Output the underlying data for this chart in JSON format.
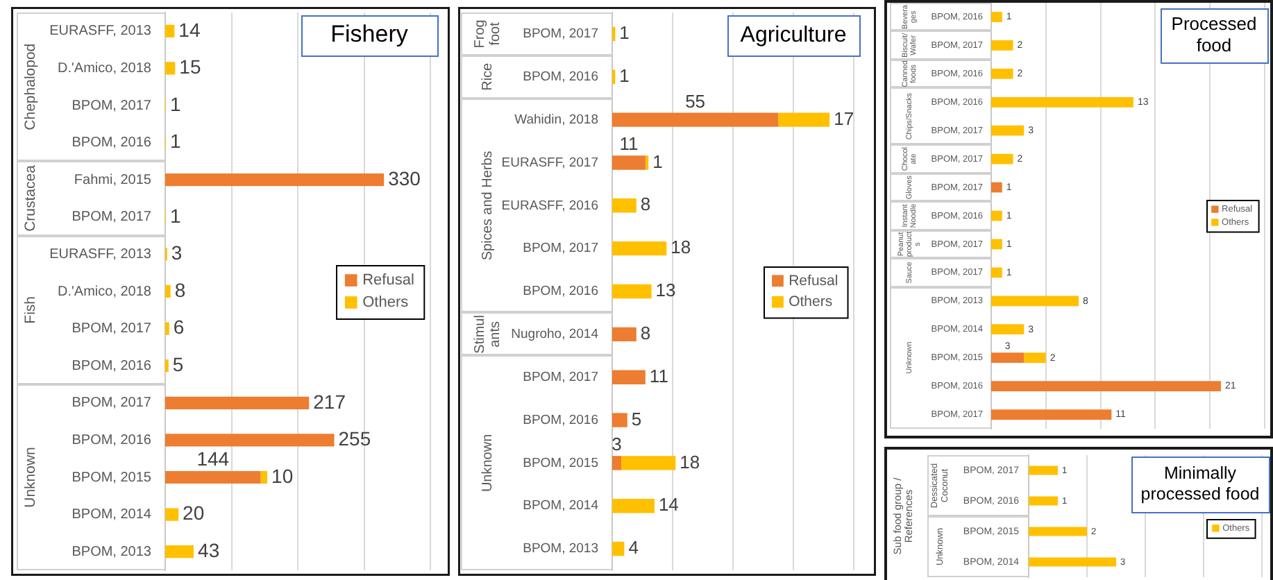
{
  "chart_data": [
    {
      "type": "bar",
      "orientation": "horizontal",
      "stacked": true,
      "title": "Fishery",
      "categories": [
        "EURASFF, 2013",
        "D.'Amico, 2018",
        "BPOM, 2017",
        "BPOM, 2016",
        "Fahmi, 2015",
        "BPOM, 2017",
        "EURASFF, 2013",
        "D.'Amico, 2018",
        "BPOM, 2017",
        "BPOM, 2016",
        "BPOM, 2017",
        "BPOM, 2016",
        "BPOM, 2015",
        "BPOM, 2014",
        "BPOM, 2013"
      ],
      "series": [
        {
          "name": "Refusal",
          "color": "#ed7d31",
          "values": [
            null,
            null,
            null,
            null,
            330,
            null,
            null,
            null,
            null,
            null,
            217,
            255,
            144,
            null,
            null
          ]
        },
        {
          "name": "Others",
          "color": "#ffc000",
          "values": [
            14,
            15,
            1,
            1,
            null,
            1,
            3,
            8,
            6,
            5,
            null,
            null,
            10,
            20,
            43
          ]
        }
      ],
      "annotations": [
        "Chephalopod",
        "Crustacea",
        "Fish",
        "Unknown"
      ],
      "xlim": [
        0,
        400
      ],
      "xticks": [
        {
          "value": 100,
          "label": null
        },
        {
          "value": 200,
          "label": null
        },
        {
          "value": 300,
          "label": null
        },
        {
          "value": 400,
          "label": null
        }
      ],
      "grid": "x",
      "legend": "right",
      "tick_labels": "y",
      "data_labels": true
    },
    {
      "type": "bar",
      "orientation": "horizontal",
      "stacked": true,
      "title": "Agriculture",
      "categories": [
        "BPOM, 2017",
        "BPOM, 2016",
        "Wahidin, 2018",
        "EURASFF, 2017",
        "EURASFF, 2016",
        "BPOM, 2017",
        "BPOM, 2016",
        "Nugroho, 2014",
        "BPOM, 2017",
        "BPOM, 2016",
        "BPOM, 2015",
        "BPOM, 2014",
        "BPOM, 2013"
      ],
      "series": [
        {
          "name": "Refusal",
          "color": "#ed7d31",
          "values": [
            null,
            null,
            55,
            11,
            null,
            null,
            null,
            8,
            11,
            5,
            3,
            null,
            null
          ]
        },
        {
          "name": "Others",
          "color": "#ffc000",
          "values": [
            1,
            1,
            17,
            1,
            8,
            18,
            13,
            null,
            null,
            null,
            18,
            14,
            4
          ]
        }
      ],
      "annotations": [
        "Frog foot",
        "Rice",
        "Spices and Herbs",
        "Stimulants",
        "Unknown"
      ],
      "xlim": [
        0,
        80
      ],
      "xticks": [
        {
          "value": 20,
          "label": null
        },
        {
          "value": 40,
          "label": null
        },
        {
          "value": 60,
          "label": null
        },
        {
          "value": 80,
          "label": null
        }
      ],
      "grid": "x",
      "legend": "right",
      "tick_labels": "y",
      "data_labels": true
    },
    {
      "type": "bar",
      "orientation": "horizontal",
      "stacked": true,
      "title": "Processed food",
      "categories": [
        "BPOM, 2016",
        "BPOM, 2017",
        "BPOM, 2016",
        "BPOM, 2016",
        "BPOM, 2017",
        "BPOM, 2017",
        "BPOM, 2017",
        "BPOM, 2016",
        "BPOM, 2017",
        "BPOM, 2017",
        "BPOM, 2013",
        "BPOM, 2014",
        "BPOM, 2015",
        "BPOM, 2016",
        "BPOM, 2017"
      ],
      "series": [
        {
          "name": "Refusal",
          "color": "#ed7d31",
          "values": [
            null,
            null,
            null,
            null,
            null,
            null,
            1,
            null,
            null,
            null,
            null,
            null,
            3,
            21,
            11
          ]
        },
        {
          "name": "Others",
          "color": "#ffc000",
          "values": [
            1,
            2,
            2,
            13,
            3,
            2,
            null,
            1,
            1,
            1,
            8,
            3,
            2,
            null,
            null
          ]
        }
      ],
      "annotations": [
        "Beverages",
        "Biscuit/Wafer",
        "Canned foods",
        "Chips/Snacks",
        "Chocolate",
        "Gloves",
        "Instant Noodle",
        "Peanut products",
        "Sauce",
        "Unknown"
      ],
      "xlim": [
        0,
        25
      ],
      "xticks": [
        {
          "value": 5,
          "label": null
        },
        {
          "value": 10,
          "label": null
        },
        {
          "value": 15,
          "label": null
        },
        {
          "value": 20,
          "label": null
        },
        {
          "value": 25,
          "label": null
        }
      ],
      "grid": "x",
      "legend": "right",
      "tick_labels": "y",
      "data_labels": true
    },
    {
      "type": "bar",
      "orientation": "horizontal",
      "stacked": true,
      "title": "Minimally processed food",
      "ylabel": "Sub food group / References",
      "categories": [
        "BPOM, 2017",
        "BPOM, 2016",
        "BPOM, 2015",
        "BPOM, 2014"
      ],
      "series": [
        {
          "name": "Others",
          "color": "#ffc000",
          "values": [
            1,
            1,
            2,
            3
          ]
        }
      ],
      "annotations": [
        "Dessicated Coconut",
        "Unknown"
      ],
      "xlim": [
        0,
        8
      ],
      "xticks": [
        {
          "value": 2,
          "label": null
        },
        {
          "value": 4,
          "label": null
        },
        {
          "value": 6,
          "label": null
        },
        {
          "value": 8,
          "label": null
        }
      ],
      "grid": "x",
      "legend": "right",
      "tick_labels": "y",
      "data_labels": true
    }
  ]
}
